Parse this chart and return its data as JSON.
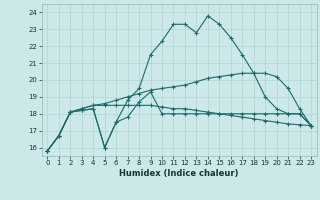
{
  "xlabel": "Humidex (Indice chaleur)",
  "xlim": [
    -0.5,
    23.5
  ],
  "ylim": [
    15.5,
    24.5
  ],
  "yticks": [
    16,
    17,
    18,
    19,
    20,
    21,
    22,
    23,
    24
  ],
  "xticks": [
    0,
    1,
    2,
    3,
    4,
    5,
    6,
    7,
    8,
    9,
    10,
    11,
    12,
    13,
    14,
    15,
    16,
    17,
    18,
    19,
    20,
    21,
    22,
    23
  ],
  "bg_color": "#cce8e8",
  "grid_color": "#b0d4d4",
  "line_color": "#1a6b6b",
  "line1": [
    15.8,
    16.7,
    18.1,
    18.2,
    18.3,
    16.0,
    17.5,
    17.8,
    18.7,
    19.3,
    18.0,
    18.0,
    18.0,
    18.0,
    18.0,
    18.0,
    18.0,
    18.0,
    18.0,
    18.0,
    18.0,
    18.0,
    18.0,
    17.3
  ],
  "line2": [
    15.8,
    16.7,
    18.1,
    18.2,
    18.3,
    16.0,
    17.5,
    18.8,
    19.5,
    21.5,
    22.3,
    23.3,
    23.3,
    22.8,
    23.8,
    23.3,
    22.5,
    21.5,
    20.4,
    19.0,
    18.3,
    18.0,
    18.0,
    17.3
  ],
  "line3": [
    15.8,
    16.7,
    18.1,
    18.3,
    18.5,
    18.6,
    18.8,
    19.0,
    19.2,
    19.4,
    19.5,
    19.6,
    19.7,
    19.9,
    20.1,
    20.2,
    20.3,
    20.4,
    20.4,
    20.4,
    20.2,
    19.5,
    18.3,
    17.3
  ],
  "line4": [
    15.8,
    16.7,
    18.1,
    18.3,
    18.5,
    18.5,
    18.5,
    18.5,
    18.5,
    18.5,
    18.4,
    18.3,
    18.3,
    18.2,
    18.1,
    18.0,
    17.9,
    17.8,
    17.7,
    17.6,
    17.5,
    17.4,
    17.35,
    17.3
  ]
}
